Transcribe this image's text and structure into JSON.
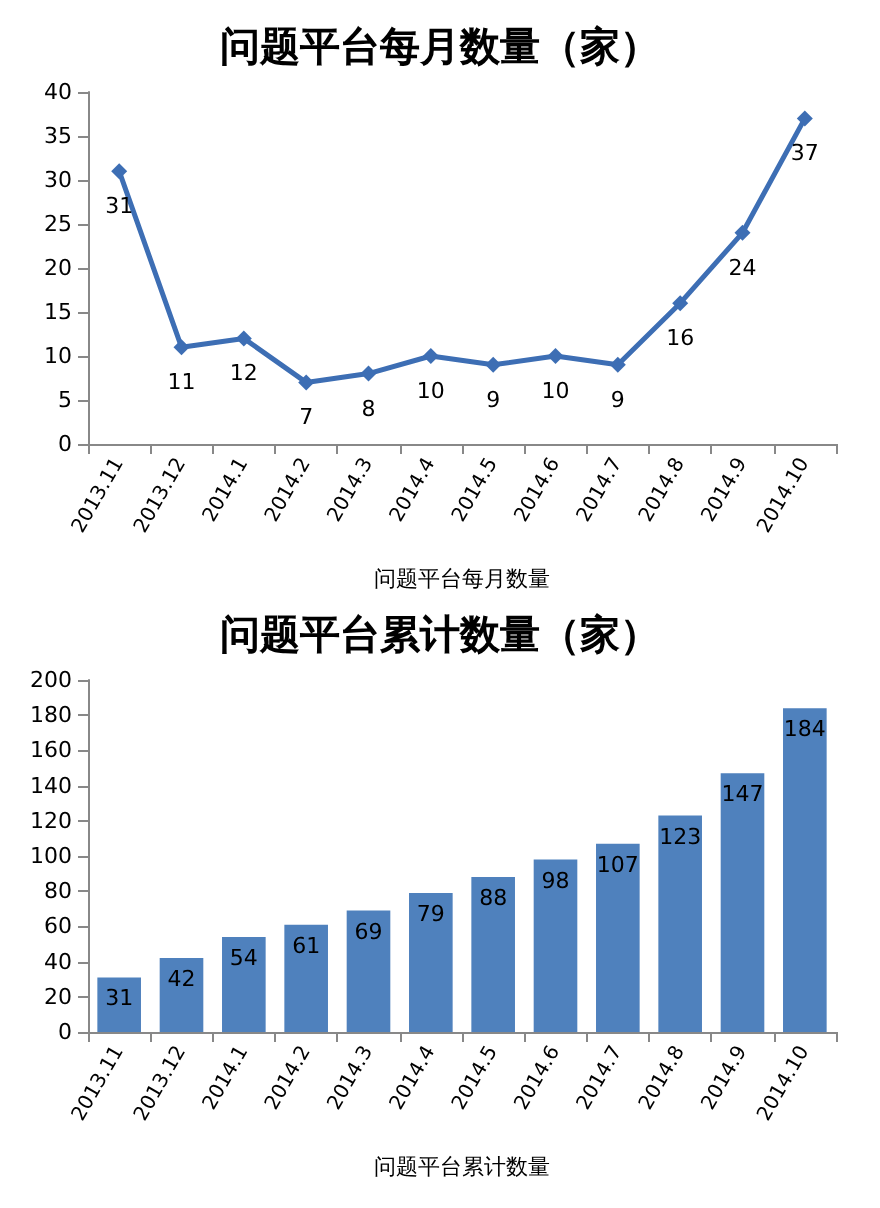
{
  "chart_data": [
    {
      "type": "line",
      "title": "问题平台每月数量（家）",
      "xlabel": "问题平台每月数量",
      "categories": [
        "2013.11",
        "2013.12",
        "2014.1",
        "2014.2",
        "2014.3",
        "2014.4",
        "2014.5",
        "2014.6",
        "2014.7",
        "2014.8",
        "2014.9",
        "2014.10"
      ],
      "series": [
        {
          "color": "#3d6eb4",
          "values": [
            31,
            11,
            12,
            7,
            8,
            10,
            9,
            10,
            9,
            16,
            24,
            37
          ]
        }
      ],
      "ylim": [
        0,
        40
      ],
      "yticks": [
        0,
        5,
        10,
        15,
        20,
        25,
        30,
        35,
        40
      ],
      "marker": "diamond",
      "data_labels": true
    },
    {
      "type": "bar",
      "title": "问题平台累计数量（家）",
      "xlabel": "问题平台累计数量",
      "categories": [
        "2013.11",
        "2013.12",
        "2014.1",
        "2014.2",
        "2014.3",
        "2014.4",
        "2014.5",
        "2014.6",
        "2014.7",
        "2014.8",
        "2014.9",
        "2014.10"
      ],
      "series": [
        {
          "color": "#4f81bd",
          "values": [
            31,
            42,
            54,
            61,
            69,
            79,
            88,
            98,
            107,
            123,
            147,
            184
          ]
        }
      ],
      "ylim": [
        0,
        200
      ],
      "yticks": [
        0,
        20,
        40,
        60,
        80,
        100,
        120,
        140,
        160,
        180,
        200
      ],
      "data_labels": true
    }
  ]
}
